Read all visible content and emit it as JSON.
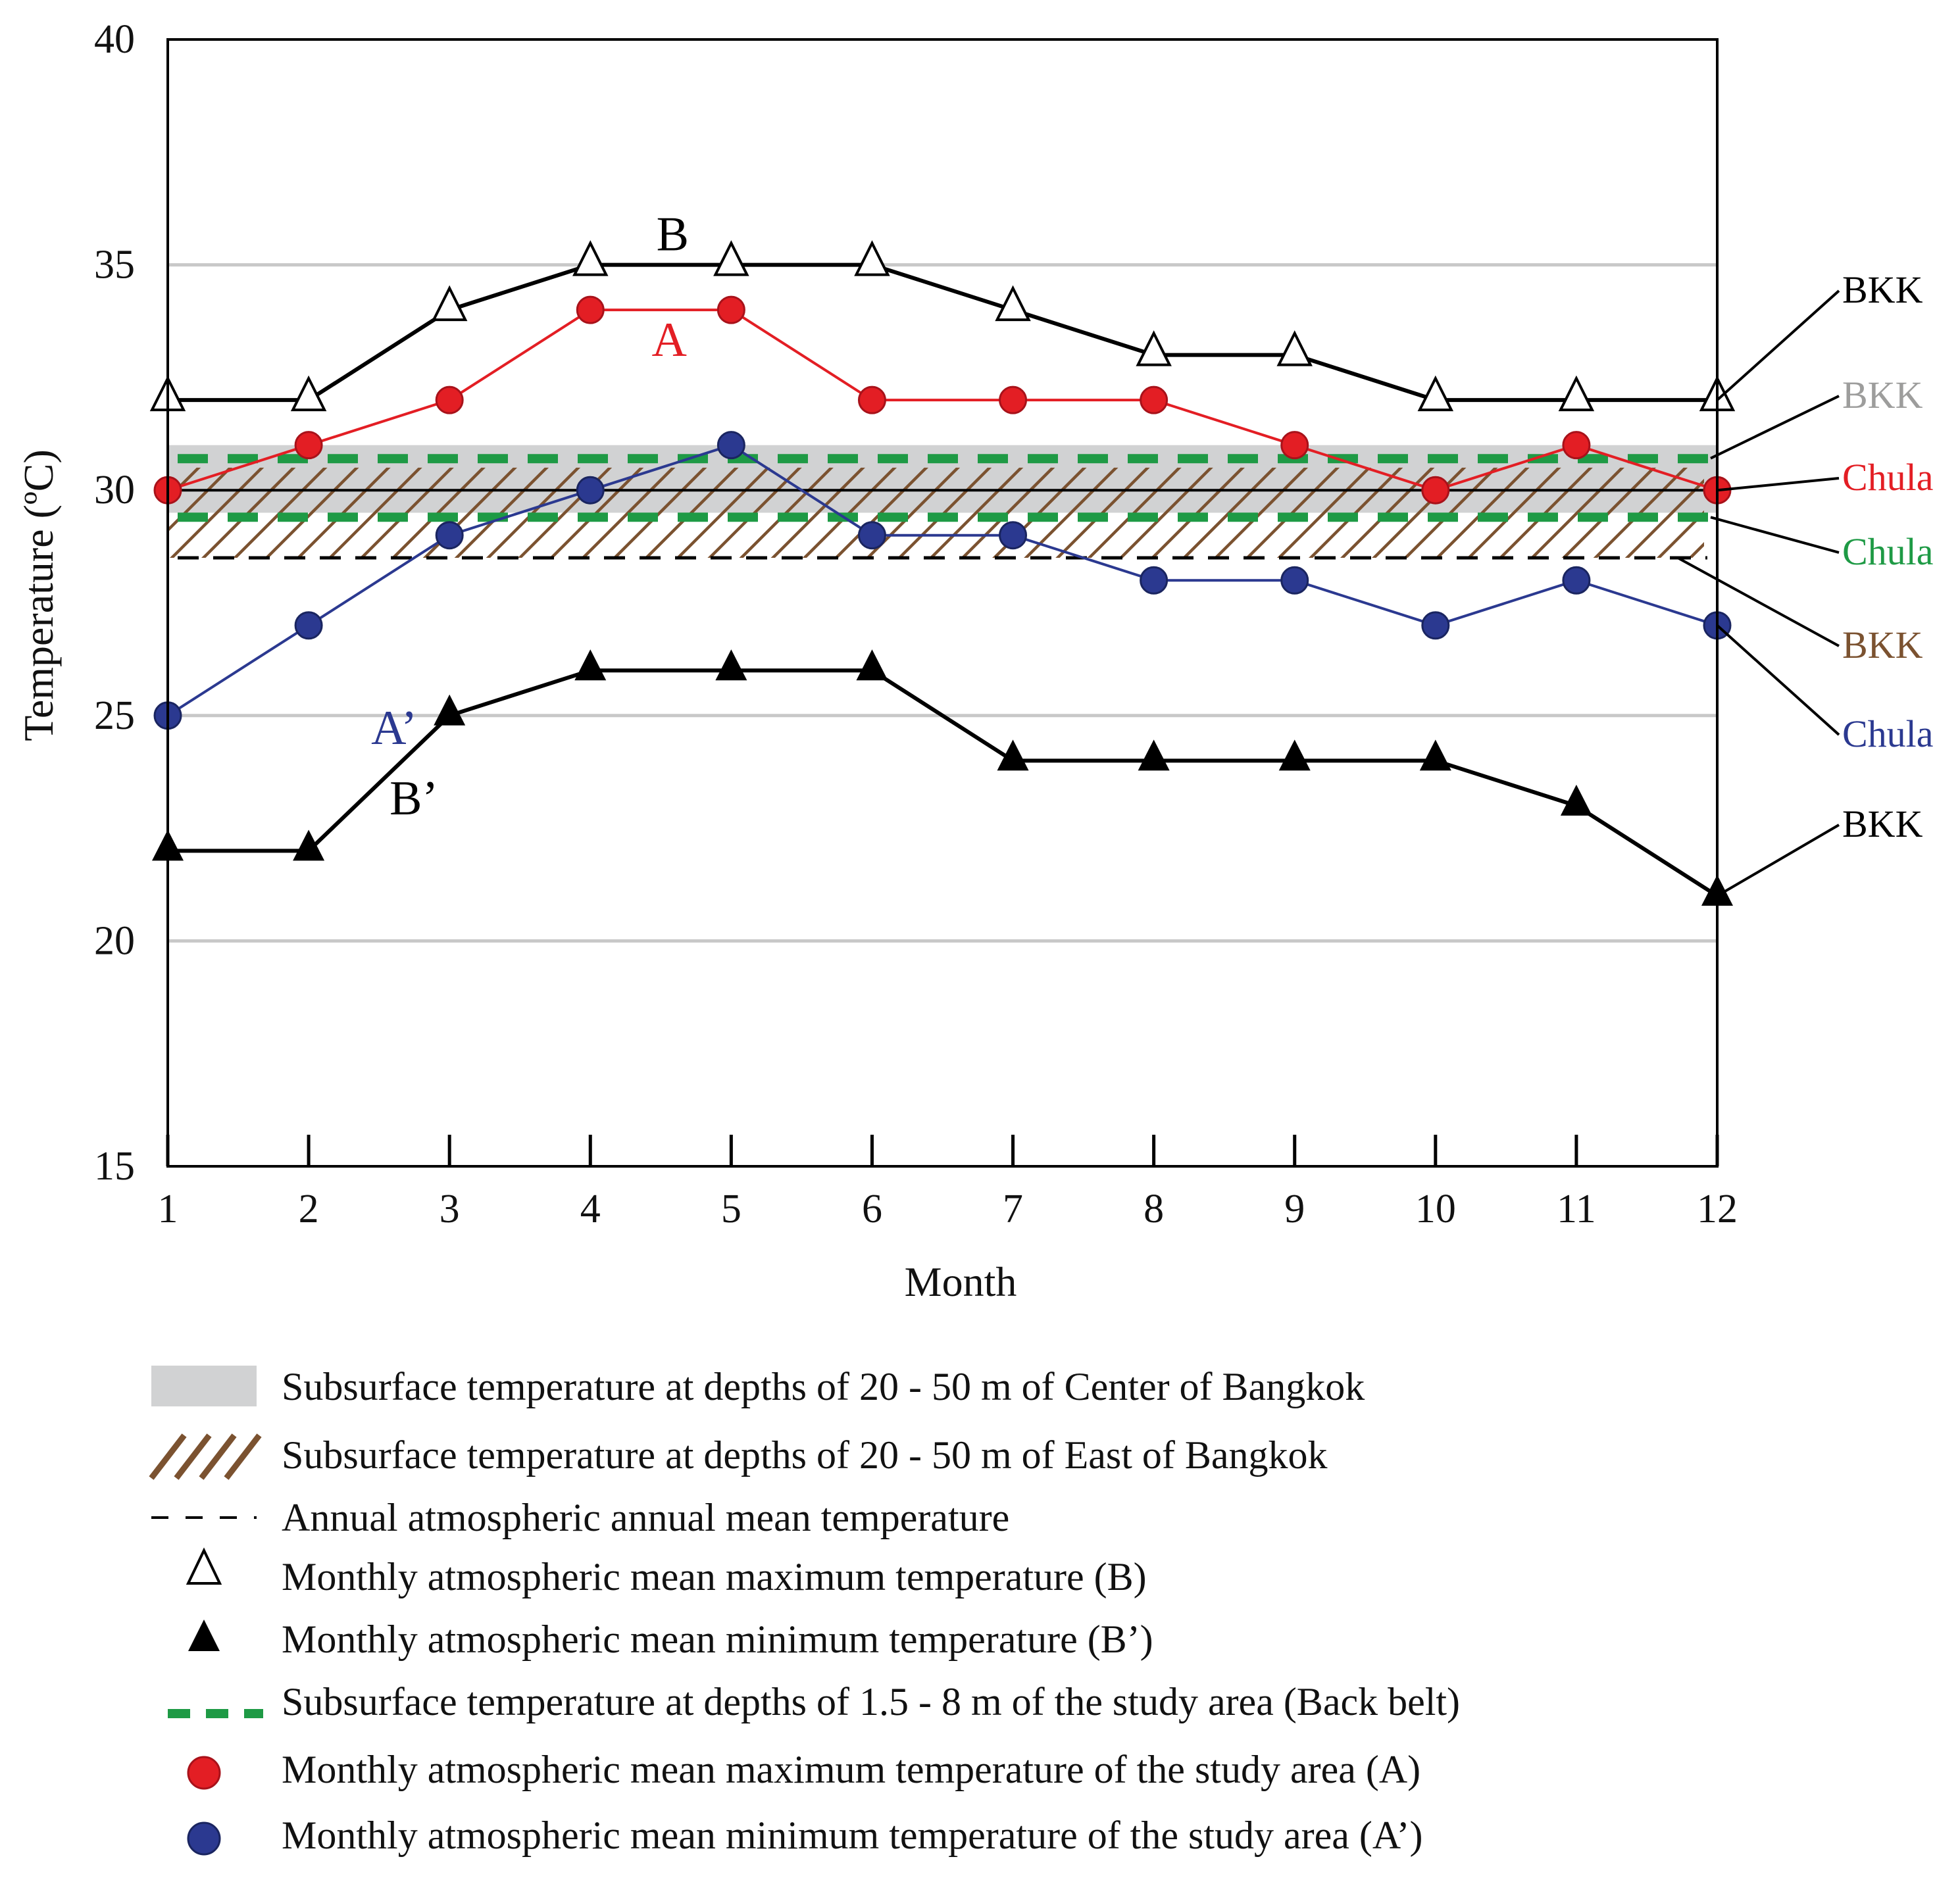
{
  "chart_data": {
    "type": "line",
    "xlabel": "Month",
    "ylabel": "Temperature (ºC)",
    "x": [
      1,
      2,
      3,
      4,
      5,
      6,
      7,
      8,
      9,
      10,
      11,
      12
    ],
    "xticks": [
      "1",
      "2",
      "3",
      "4",
      "5",
      "6",
      "7",
      "8",
      "9",
      "10",
      "11",
      "12"
    ],
    "yticks": [
      "15",
      "20",
      "25",
      "30",
      "35",
      "40"
    ],
    "ylim": [
      15,
      40
    ],
    "xlim": [
      1,
      12
    ],
    "gridlines_y": [
      20,
      25,
      35
    ],
    "series": [
      {
        "name": "Monthly atmospheric mean maximum temperature (B)",
        "label": "B",
        "color": "#000000",
        "marker": "open-triangle",
        "values": [
          32,
          32,
          34,
          35,
          35,
          35,
          34,
          33,
          33,
          32,
          32,
          32
        ]
      },
      {
        "name": "Monthly atmospheric mean maximum temperature of the study area (A)",
        "label": "A",
        "color": "#e31e24",
        "marker": "red-circle",
        "values": [
          30,
          31,
          32,
          34,
          34,
          32,
          32,
          32,
          31,
          30,
          31,
          30
        ]
      },
      {
        "name": "Monthly atmospheric mean minimum temperature of the study area (A’)",
        "label": "A’",
        "color": "#2b3990",
        "marker": "blue-circle",
        "values": [
          25,
          27,
          29,
          30,
          31,
          29,
          29,
          28,
          28,
          27,
          28,
          27
        ]
      },
      {
        "name": "Monthly atmospheric mean minimum temperature (B’)",
        "label": "B’",
        "color": "#000000",
        "marker": "filled-triangle",
        "values": [
          22,
          22,
          25,
          26,
          26,
          26,
          24,
          24,
          24,
          24,
          23,
          21
        ]
      }
    ],
    "bands": {
      "center_bangkok_range": [
        29.5,
        31
      ],
      "east_bangkok_range": [
        28.5,
        30.5
      ],
      "study_area_dashed": [
        29.4,
        30.7
      ],
      "annual_mean": 28.5,
      "bkk_line": 30
    },
    "right_labels": [
      {
        "text": "BKK",
        "color": "#000000"
      },
      {
        "text": "BKK",
        "color": "#9d9d9c"
      },
      {
        "text": "Chula",
        "color": "#e31e24"
      },
      {
        "text": "Chula",
        "color": "#1e9a45"
      },
      {
        "text": "BKK",
        "color": "#7b5230"
      },
      {
        "text": "Chula",
        "color": "#2b3990"
      },
      {
        "text": "BKK",
        "color": "#000000"
      }
    ],
    "legend": [
      {
        "symbol": "gray-band",
        "text": "Subsurface temperature at depths of  20 - 50 m of Center of Bangkok"
      },
      {
        "symbol": "brown-hatch",
        "text": "Subsurface temperature at depths of  20 - 50 m of East of Bangkok"
      },
      {
        "symbol": "black-dash",
        "text": "Annual atmospheric annual mean temperature"
      },
      {
        "symbol": "open-triangle",
        "text": "Monthly atmospheric mean maximum temperature (B)"
      },
      {
        "symbol": "filled-triangle",
        "text": "Monthly atmospheric mean minimum temperature (B’)"
      },
      {
        "symbol": "green-dash",
        "text": "Subsurface temperature at depths of  1.5 - 8  m of the study area (Back belt)"
      },
      {
        "symbol": "red-circle",
        "text": "Monthly atmospheric mean maximum temperature of the study area (A)"
      },
      {
        "symbol": "blue-circle",
        "text": "Monthly atmospheric mean minimum temperature of the study area (A’)"
      }
    ],
    "colors": {
      "gray_band": "#d1d2d3",
      "hatch": "#7b5230",
      "green": "#1e9a45",
      "red": "#e31e24",
      "blue": "#2b3990",
      "grid": "#c8c8c8",
      "gray_text": "#9d9d9c"
    }
  }
}
